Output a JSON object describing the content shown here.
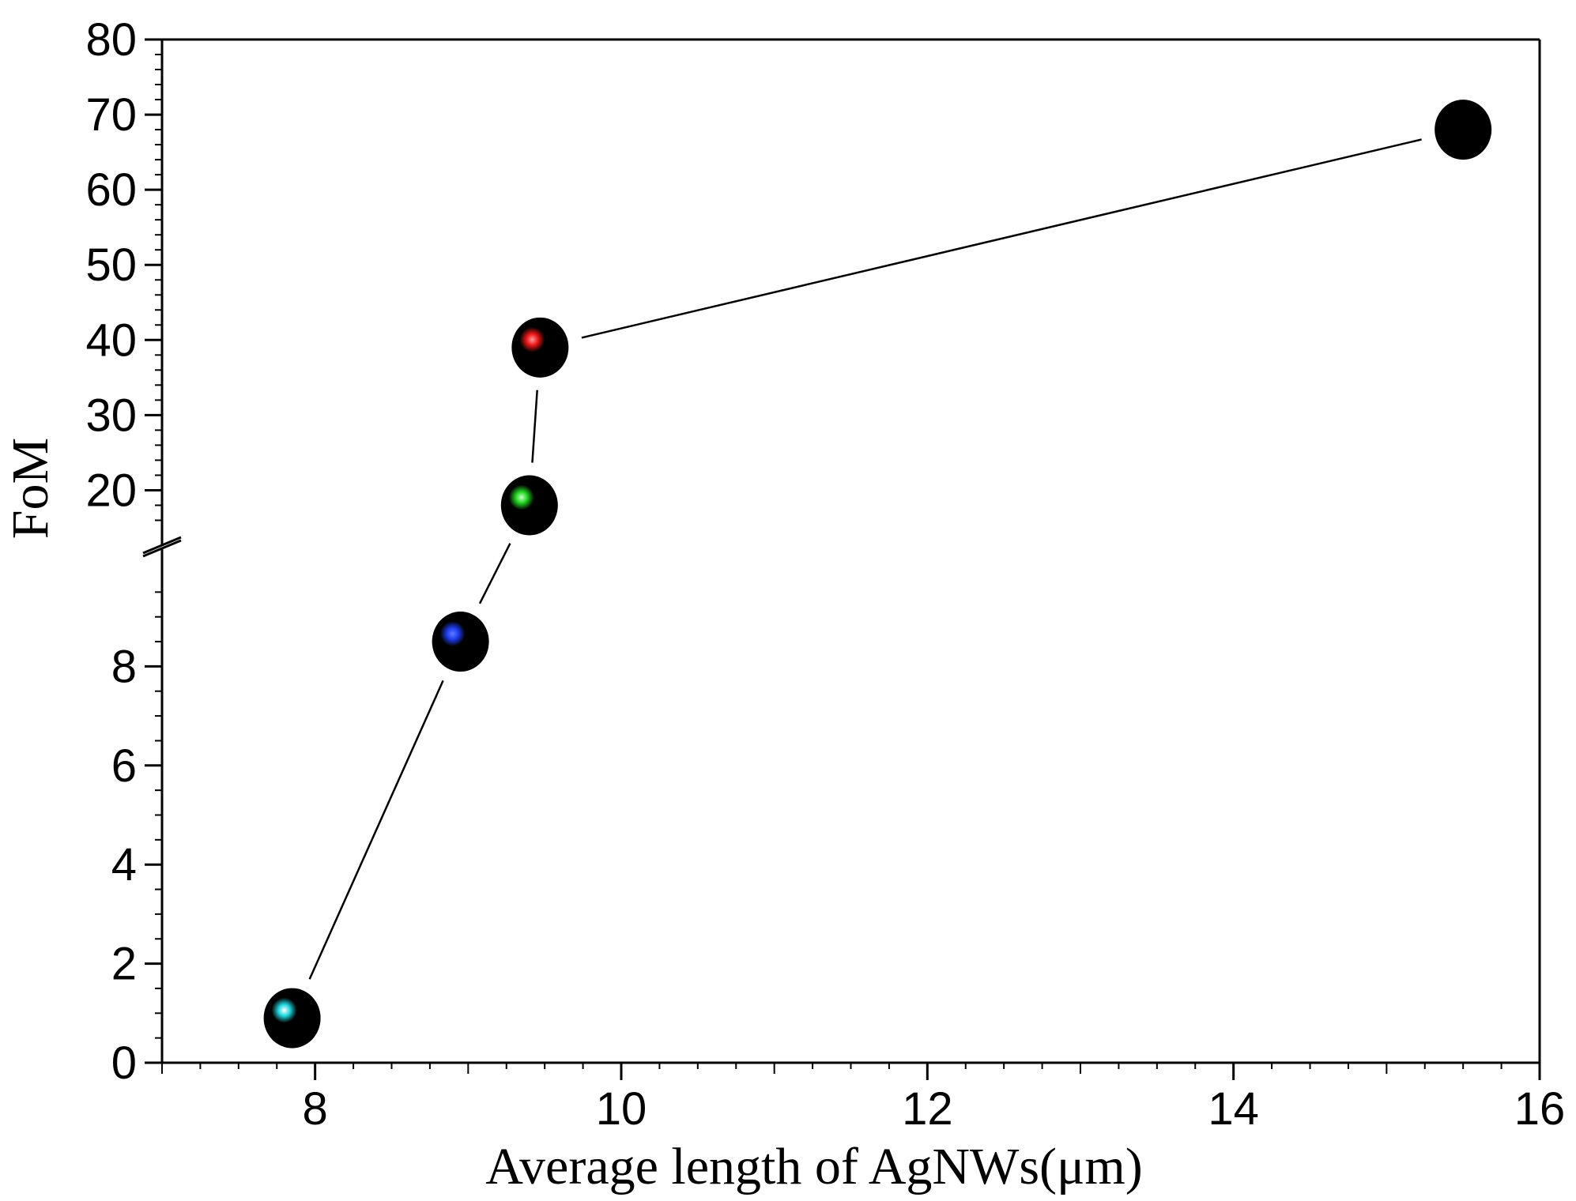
{
  "chart_data": {
    "type": "scatter",
    "title": "",
    "xlabel": "Average length of AgNWs(μm)",
    "ylabel": "FoM",
    "xlim": [
      7,
      16
    ],
    "x_ticks": [
      "8",
      "10",
      "12",
      "14",
      "16"
    ],
    "y_axis_break": {
      "lower_range": [
        0,
        10
      ],
      "upper_range": [
        15,
        80
      ]
    },
    "y_ticks_lower": [
      "0",
      "2",
      "4",
      "6",
      "8"
    ],
    "y_ticks_upper": [
      "20",
      "30",
      "40",
      "50",
      "60",
      "70",
      "80"
    ],
    "series": [
      {
        "name": "FoM",
        "line": true,
        "points": [
          {
            "x": 7.85,
            "y": 0.9,
            "highlight": "#22d8e0"
          },
          {
            "x": 8.95,
            "y": 8.5,
            "highlight": "#1f3df0"
          },
          {
            "x": 9.4,
            "y": 18,
            "highlight": "#22d622"
          },
          {
            "x": 9.47,
            "y": 39,
            "highlight": "#ee1818"
          },
          {
            "x": 15.5,
            "y": 68,
            "highlight": "#000000"
          }
        ]
      }
    ]
  }
}
